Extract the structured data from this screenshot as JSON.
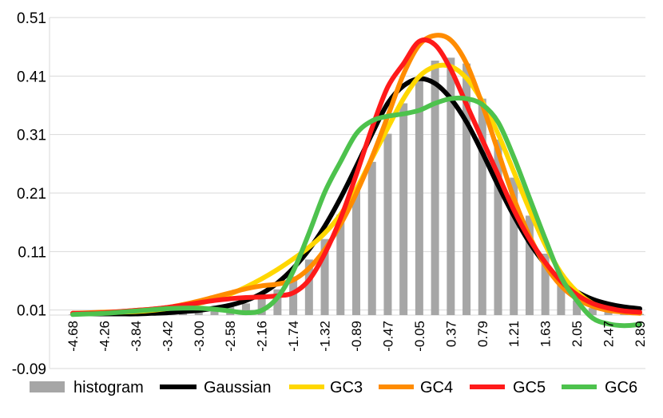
{
  "chart_data": {
    "type": "bar",
    "title": "",
    "xlabel": "",
    "ylabel": "",
    "ylim": [
      -0.09,
      0.51
    ],
    "yticks": [
      "-0.09",
      "0.01",
      "0.11",
      "0.21",
      "0.31",
      "0.41",
      "0.51"
    ],
    "ytick_values": [
      -0.09,
      0.01,
      0.11,
      0.21,
      0.31,
      0.41,
      0.51
    ],
    "grid": true,
    "legend_position": "bottom",
    "x": [
      -4.68,
      -4.47,
      -4.26,
      -4.05,
      -3.84,
      -3.63,
      -3.42,
      -3.21,
      -3.0,
      -2.79,
      -2.58,
      -2.37,
      -2.16,
      -1.95,
      -1.74,
      -1.53,
      -1.32,
      -1.1,
      -0.89,
      -0.68,
      -0.47,
      -0.26,
      -0.05,
      0.16,
      0.37,
      0.58,
      0.79,
      1.0,
      1.21,
      1.42,
      1.63,
      1.84,
      2.05,
      2.26,
      2.47,
      2.68,
      2.89
    ],
    "x_tick_labels": [
      "-4.68",
      "-4.26",
      "-3.84",
      "-3.42",
      "-3.00",
      "-2.58",
      "-2.16",
      "-1.74",
      "-1.32",
      "-0.89",
      "-0.47",
      "-0.05",
      "0.37",
      "0.79",
      "1.21",
      "1.63",
      "2.05",
      "2.47",
      "2.89"
    ],
    "series": [
      {
        "name": "histogram",
        "kind": "bar",
        "color": "#a6a6a6",
        "values": [
          0.001,
          0.001,
          0.001,
          0.001,
          0.001,
          0.002,
          0.004,
          0.006,
          0.009,
          0.011,
          0.016,
          0.02,
          0.03,
          0.044,
          0.066,
          0.095,
          0.13,
          0.172,
          0.215,
          0.262,
          0.31,
          0.362,
          0.4,
          0.435,
          0.44,
          0.43,
          0.37,
          0.3,
          0.235,
          0.17,
          0.105,
          0.055,
          0.025,
          0.012,
          0.006,
          0.003,
          0.002
        ]
      },
      {
        "name": "Gaussian",
        "kind": "line",
        "color": "#000000",
        "values": [
          0.002,
          0.002,
          0.002,
          0.002,
          0.002,
          0.003,
          0.004,
          0.006,
          0.008,
          0.012,
          0.017,
          0.025,
          0.037,
          0.055,
          0.08,
          0.112,
          0.152,
          0.2,
          0.254,
          0.31,
          0.362,
          0.392,
          0.404,
          0.396,
          0.37,
          0.33,
          0.278,
          0.222,
          0.17,
          0.124,
          0.087,
          0.059,
          0.04,
          0.027,
          0.019,
          0.014,
          0.011
        ]
      },
      {
        "name": "GC3",
        "kind": "line",
        "color": "#ffd700",
        "values": [
          0.003,
          0.003,
          0.004,
          0.005,
          0.006,
          0.008,
          0.011,
          0.015,
          0.02,
          0.027,
          0.036,
          0.048,
          0.062,
          0.078,
          0.096,
          0.116,
          0.14,
          0.172,
          0.215,
          0.268,
          0.32,
          0.37,
          0.408,
          0.425,
          0.425,
          0.405,
          0.365,
          0.31,
          0.245,
          0.18,
          0.12,
          0.072,
          0.04,
          0.02,
          0.01,
          0.005,
          0.004
        ]
      },
      {
        "name": "GC4",
        "kind": "line",
        "color": "#ff8c00",
        "values": [
          0.003,
          0.004,
          0.005,
          0.006,
          0.008,
          0.01,
          0.013,
          0.018,
          0.024,
          0.031,
          0.038,
          0.045,
          0.05,
          0.053,
          0.06,
          0.08,
          0.112,
          0.155,
          0.208,
          0.27,
          0.34,
          0.412,
          0.462,
          0.478,
          0.47,
          0.43,
          0.36,
          0.28,
          0.2,
          0.135,
          0.085,
          0.05,
          0.028,
          0.015,
          0.008,
          0.005,
          0.003
        ]
      },
      {
        "name": "GC5",
        "kind": "line",
        "color": "#ff1a1a",
        "values": [
          0.003,
          0.003,
          0.004,
          0.006,
          0.008,
          0.01,
          0.013,
          0.017,
          0.021,
          0.025,
          0.028,
          0.03,
          0.031,
          0.033,
          0.038,
          0.06,
          0.105,
          0.165,
          0.24,
          0.32,
          0.39,
          0.43,
          0.468,
          0.462,
          0.42,
          0.36,
          0.3,
          0.24,
          0.18,
          0.13,
          0.09,
          0.058,
          0.035,
          0.02,
          0.012,
          0.007,
          0.005
        ]
      },
      {
        "name": "GC6",
        "kind": "line",
        "color": "#4dc24d",
        "values": [
          0.001,
          0.002,
          0.003,
          0.005,
          0.007,
          0.009,
          0.011,
          0.012,
          0.012,
          0.01,
          0.007,
          0.004,
          0.008,
          0.03,
          0.075,
          0.14,
          0.21,
          0.262,
          0.31,
          0.332,
          0.34,
          0.344,
          0.35,
          0.362,
          0.37,
          0.37,
          0.36,
          0.33,
          0.27,
          0.2,
          0.13,
          0.065,
          0.025,
          -0.005,
          -0.015,
          -0.018,
          -0.016
        ]
      }
    ]
  }
}
